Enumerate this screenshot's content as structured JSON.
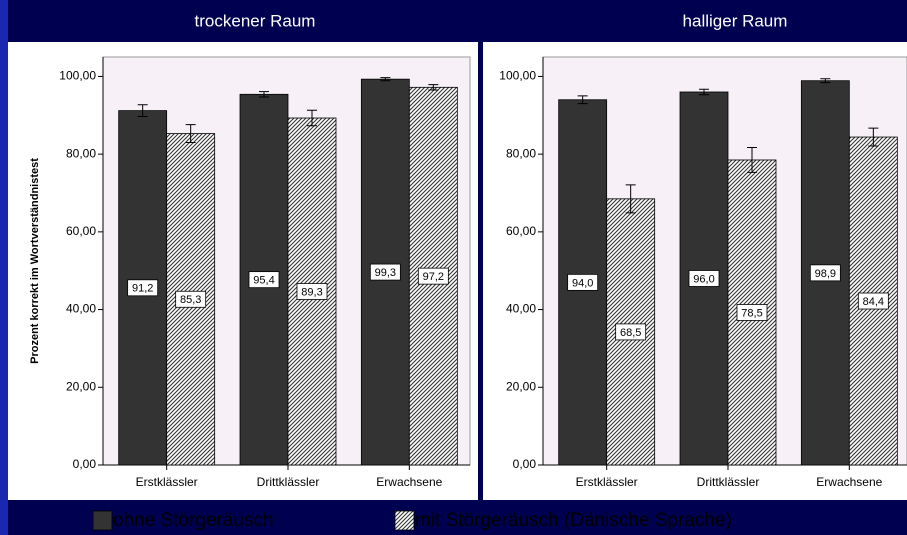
{
  "chart_data": [
    {
      "type": "bar",
      "title": "trockener Raum",
      "ylabel": "Prozent korrekt im Wortverständnistest",
      "categories": [
        "Erstklässler",
        "Drittklässler",
        "Erwachsene"
      ],
      "series": [
        {
          "name": "ohne Störgeräusch",
          "color": "#333333",
          "values": [
            91.2,
            95.4,
            99.3
          ],
          "value_labels": [
            "91,2",
            "95,4",
            "99,3"
          ],
          "errors": [
            1.5,
            0.7,
            0.4
          ]
        },
        {
          "name": "mit Störgeräusch (Dänische Sprache)",
          "color": "#333333",
          "pattern": "hatch",
          "values": [
            85.3,
            89.3,
            97.2
          ],
          "value_labels": [
            "85,3",
            "89,3",
            "97,2"
          ],
          "errors": [
            2.3,
            2.0,
            0.7
          ]
        }
      ],
      "ylim": [
        0,
        105
      ],
      "yticks": [
        {
          "value": 0,
          "label": "0,00"
        },
        {
          "value": 20,
          "label": "20,00"
        },
        {
          "value": 40,
          "label": "40,00"
        },
        {
          "value": 60,
          "label": "60,00"
        },
        {
          "value": 80,
          "label": "80,00"
        },
        {
          "value": 100,
          "label": "100,00"
        }
      ]
    },
    {
      "type": "bar",
      "title": "halliger Raum",
      "categories": [
        "Erstklässler",
        "Drittklässler",
        "Erwachsene"
      ],
      "series": [
        {
          "color": "#333333",
          "values": [
            94.0,
            96.0,
            98.9
          ],
          "value_labels": [
            "94,0",
            "96,0",
            "98,9"
          ],
          "errors": [
            1.0,
            0.7,
            0.5
          ]
        },
        {
          "color": "#333333",
          "pattern": "hatch",
          "values": [
            68.5,
            78.5,
            84.4
          ],
          "value_labels": [
            "68,5",
            "78,5",
            "84,4"
          ],
          "errors": [
            3.6,
            3.2,
            2.3
          ]
        }
      ],
      "ylim": [
        0,
        105
      ],
      "yticks": [
        {
          "value": 0,
          "label": "0,00"
        },
        {
          "value": 20,
          "label": "20,00"
        },
        {
          "value": 40,
          "label": "40,00"
        },
        {
          "value": 60,
          "label": "60,00"
        },
        {
          "value": 80,
          "label": "80,00"
        },
        {
          "value": 100,
          "label": "100,00"
        }
      ]
    }
  ]
}
